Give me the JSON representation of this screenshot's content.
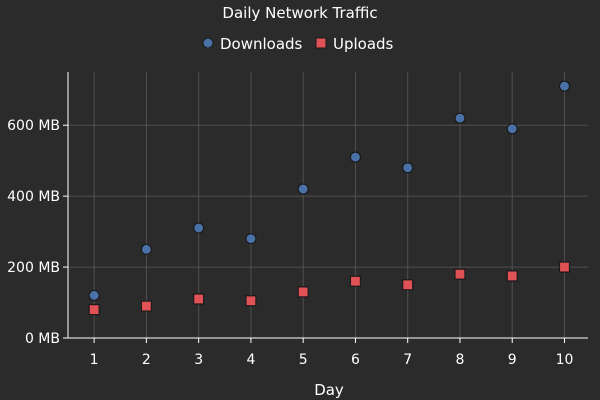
{
  "chart_data": {
    "type": "scatter",
    "title": "Daily Network Traffic",
    "xlabel": "Day",
    "ylabel": "",
    "x": [
      1,
      2,
      3,
      4,
      5,
      6,
      7,
      8,
      9,
      10
    ],
    "xlim": [
      0.5,
      10.45
    ],
    "ylim": [
      0,
      750
    ],
    "y_ticks": [
      0,
      200,
      400,
      600
    ],
    "y_tick_labels": [
      "0 MB",
      "200 MB",
      "400 MB",
      "600 MB"
    ],
    "x_tick_labels": [
      "1",
      "2",
      "3",
      "4",
      "5",
      "6",
      "7",
      "8",
      "9",
      "10"
    ],
    "grid": true,
    "legend_position": "top-center",
    "series": [
      {
        "name": "Downloads",
        "marker": "circle",
        "color": "#4a72a8",
        "values": [
          120,
          250,
          310,
          280,
          420,
          510,
          480,
          620,
          590,
          710
        ]
      },
      {
        "name": "Uploads",
        "marker": "square",
        "color": "#e05256",
        "values": [
          80,
          90,
          110,
          105,
          130,
          160,
          150,
          180,
          175,
          200
        ]
      }
    ]
  }
}
